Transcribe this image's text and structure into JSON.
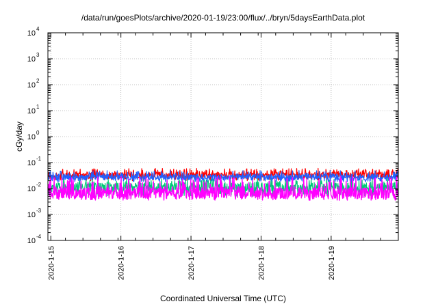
{
  "chart_data": {
    "type": "line",
    "title": "/data/run/goesPlots/archive/2020-01-19/23:00/flux/../bryn/5daysEarthData.plot",
    "xlabel": "Coordinated Universal Time (UTC)",
    "ylabel": "cGy/day",
    "yscale": "log",
    "ylim": [
      0.0001,
      10000
    ],
    "xlim": [
      "2020-01-14T23:00",
      "2020-01-19T23:00"
    ],
    "grid": true,
    "x_tick_labels": [
      "2020-1-15",
      "2020-1-16",
      "2020-1-17",
      "2020-1-18",
      "2020-1-19"
    ],
    "y_ticks": [
      {
        "base": "10",
        "exp": "4"
      },
      {
        "base": "10",
        "exp": "3"
      },
      {
        "base": "10",
        "exp": "2"
      },
      {
        "base": "10",
        "exp": "1"
      },
      {
        "base": "10",
        "exp": "0"
      },
      {
        "base": "10",
        "exp": "-1"
      },
      {
        "base": "10",
        "exp": "-2"
      },
      {
        "base": "10",
        "exp": "-3"
      },
      {
        "base": "10",
        "exp": "-4"
      }
    ],
    "series": [
      {
        "color": "#ff0000",
        "typical": 0.033,
        "low": 0.02,
        "high": 0.06
      },
      {
        "color": "#00c878",
        "typical": 0.011,
        "low": 0.005,
        "high": 0.025
      },
      {
        "color": "#2060ff",
        "typical": 0.028,
        "low": 0.018,
        "high": 0.05
      },
      {
        "color": "#ff00ff",
        "typical": 0.007,
        "low": 0.0035,
        "high": 0.03
      }
    ]
  }
}
